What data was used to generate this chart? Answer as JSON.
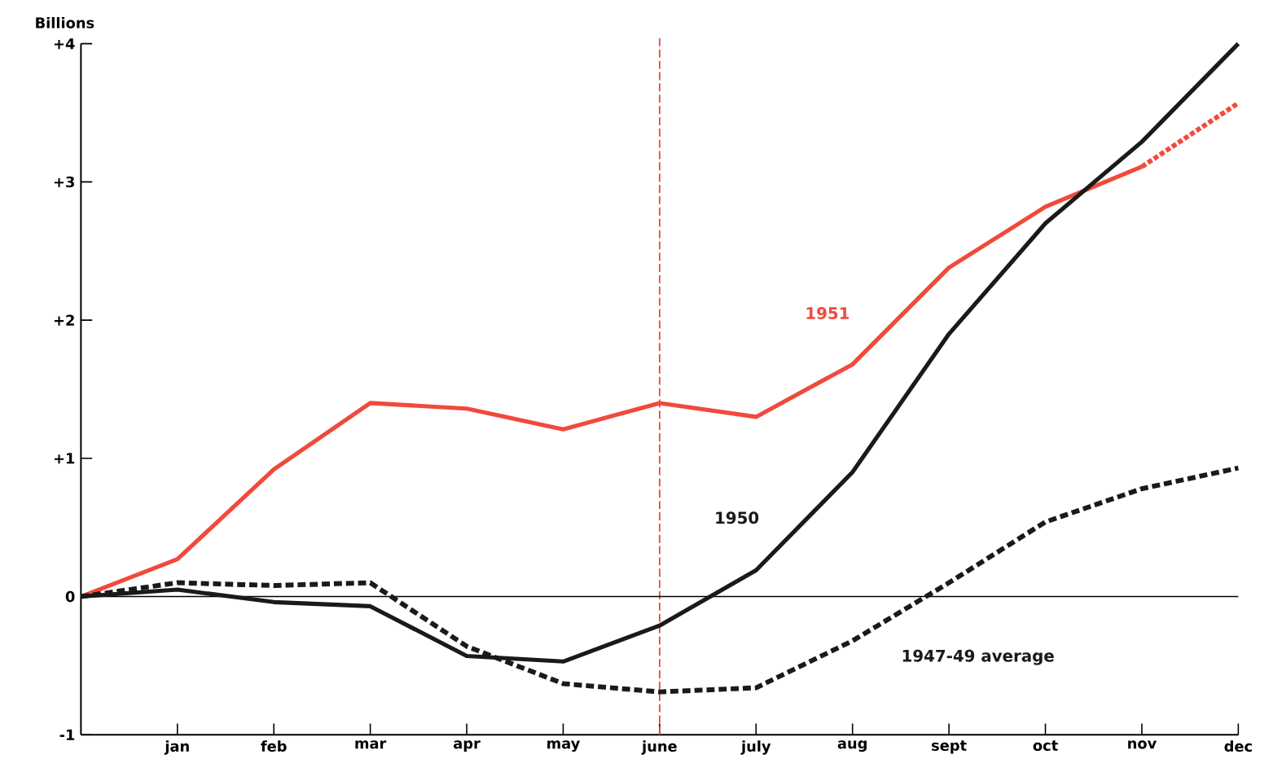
{
  "chart_data": {
    "type": "line",
    "ylabel": "Billions",
    "categories": [
      null,
      "jan",
      "feb",
      "mar",
      "apr",
      "may",
      "june",
      "july",
      "aug",
      "sept",
      "oct",
      "nov",
      "dec"
    ],
    "series": [
      {
        "name": "1951",
        "color": "#f04a3c",
        "line_style": "solid",
        "values": [
          0,
          0.27,
          0.92,
          1.4,
          1.36,
          1.21,
          1.4,
          1.3,
          1.68,
          2.38,
          2.82,
          3.11,
          null
        ]
      },
      {
        "color": "#f04a3c",
        "line_style": "dotted",
        "values": [
          null,
          null,
          null,
          null,
          null,
          null,
          null,
          null,
          null,
          null,
          null,
          3.11,
          3.57
        ]
      },
      {
        "name": "1950",
        "color": "#1a1a1a",
        "line_style": "solid",
        "values": [
          0,
          0.05,
          -0.04,
          -0.07,
          -0.43,
          -0.47,
          -0.21,
          0.19,
          0.9,
          1.9,
          2.7,
          3.29,
          4.0
        ]
      },
      {
        "name": "1947-49 average",
        "color": "#1a1a1a",
        "line_style": "dashed",
        "values": [
          0,
          0.1,
          0.08,
          0.1,
          -0.36,
          -0.63,
          -0.69,
          -0.66,
          -0.32,
          0.1,
          0.54,
          0.78,
          0.93
        ]
      }
    ],
    "ylim": [
      -1,
      4
    ],
    "yticks": [
      {
        "value": 4,
        "label": "+4"
      },
      {
        "value": 3,
        "label": "+3"
      },
      {
        "value": 2,
        "label": "+2"
      },
      {
        "value": 1,
        "label": "+1"
      },
      0,
      -1
    ],
    "ref_lines": [
      {
        "axis": "x",
        "value": "june",
        "color": "#e8473f",
        "line_style": "dashed"
      },
      {
        "axis": "y",
        "value": 0,
        "color": "#000000"
      }
    ],
    "grid": false
  }
}
